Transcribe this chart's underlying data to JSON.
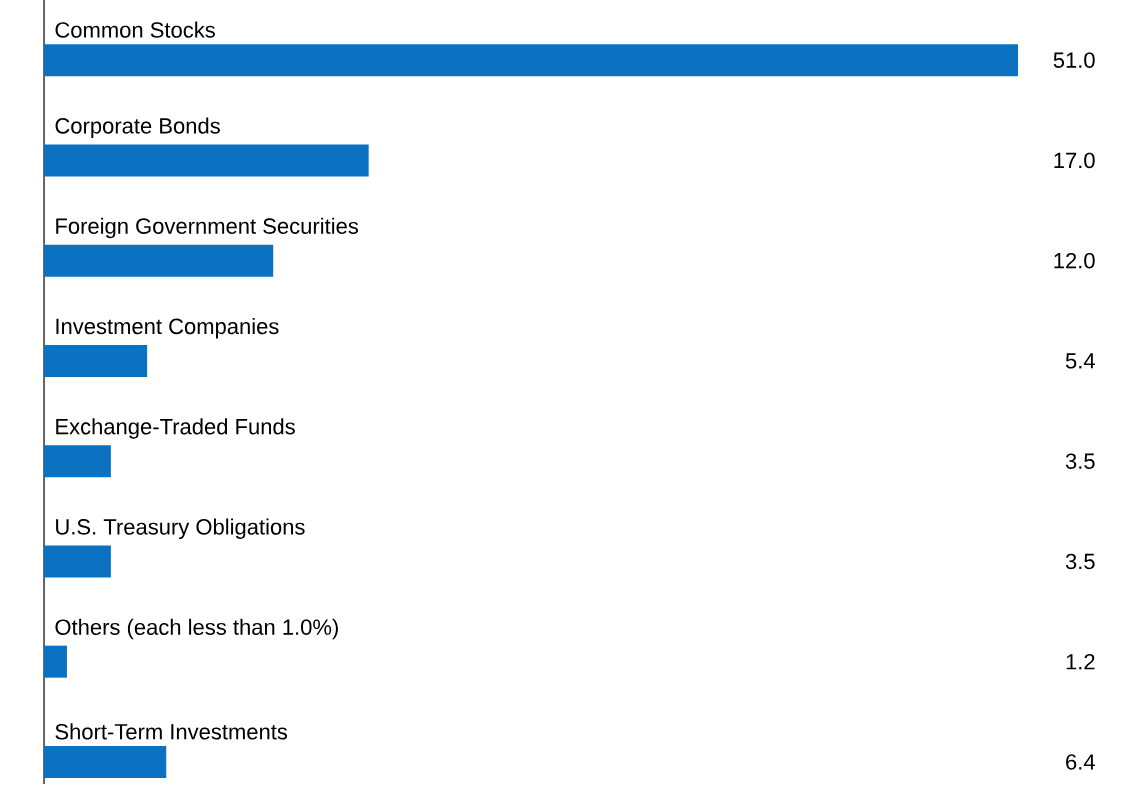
{
  "chart_data": {
    "type": "bar",
    "orientation": "horizontal",
    "categories": [
      "Common Stocks",
      "Corporate Bonds",
      "Foreign Government Securities",
      "Investment Companies",
      "Exchange-Traded Funds",
      "U.S. Treasury Obligations",
      "Others (each less than 1.0%)",
      "Short-Term Investments"
    ],
    "values": [
      51.0,
      17.0,
      12.0,
      5.4,
      3.5,
      3.5,
      1.2,
      6.4
    ],
    "value_labels": [
      "51.0",
      "17.0",
      "12.0",
      "5.4",
      "3.5",
      "3.5",
      "1.2",
      "6.4"
    ],
    "color": "#0a72c1"
  }
}
